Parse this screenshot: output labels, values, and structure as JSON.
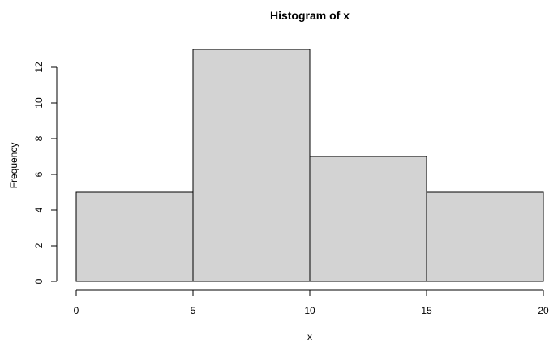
{
  "chart_data": {
    "type": "bar",
    "title": "Histogram of x",
    "xlabel": "x",
    "ylabel": "Frequency",
    "bins": [
      {
        "x0": 0,
        "x1": 5,
        "count": 5
      },
      {
        "x0": 5,
        "x1": 10,
        "count": 13
      },
      {
        "x0": 10,
        "x1": 15,
        "count": 7
      },
      {
        "x0": 15,
        "x1": 20,
        "count": 5
      }
    ],
    "x_ticks": [
      0,
      5,
      10,
      15,
      20
    ],
    "y_ticks": [
      0,
      2,
      4,
      6,
      8,
      10,
      12
    ],
    "xlim": [
      0,
      20
    ],
    "ylim": [
      0,
      13
    ],
    "grid": false,
    "legend": "none",
    "bar_color": "#d3d3d3",
    "edge_color": "#000000"
  }
}
